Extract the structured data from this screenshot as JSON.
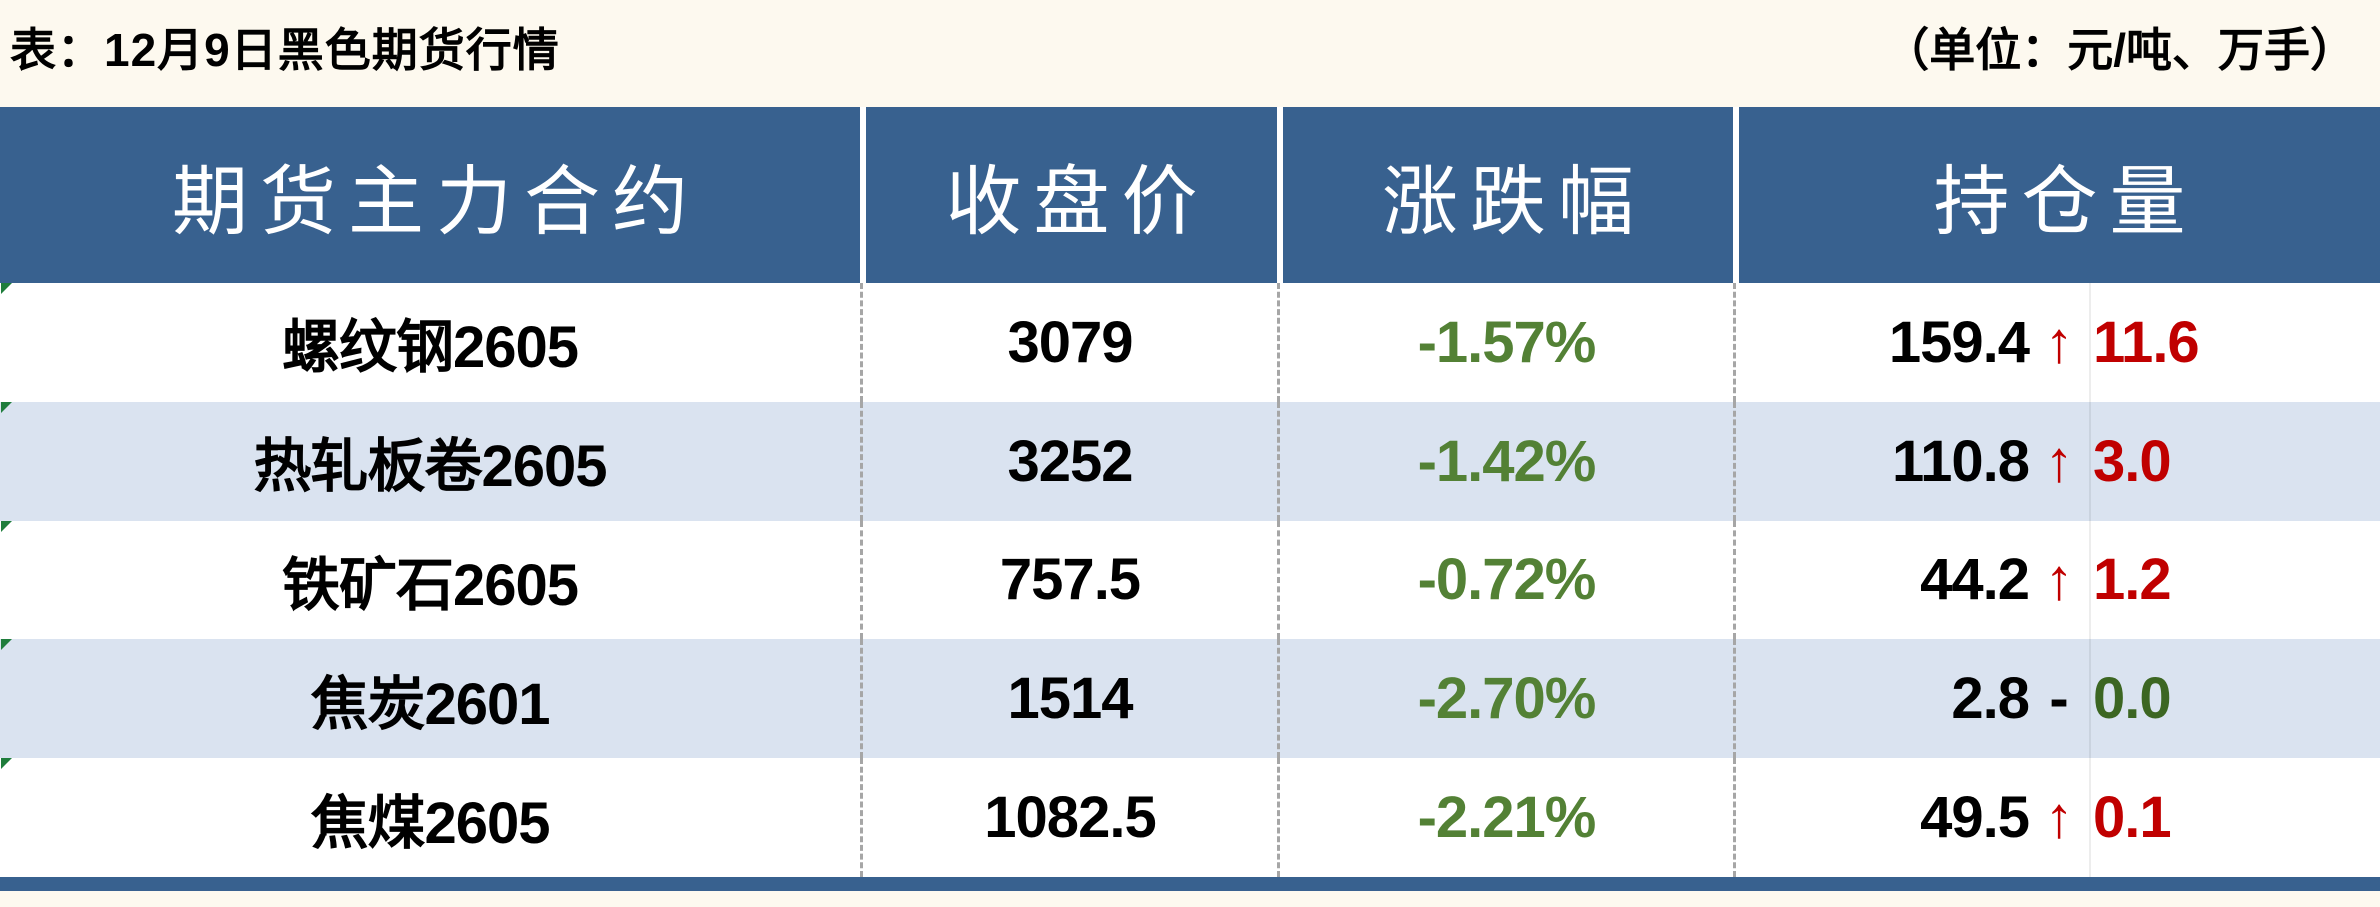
{
  "title": {
    "text": "表：12月9日黑色期货行情",
    "unit": "（单位：元/吨、万手）"
  },
  "table": {
    "headers": [
      "期货主力合约",
      "收盘价",
      "涨跌幅",
      "持仓量"
    ],
    "rows": [
      {
        "contract": "螺纹钢2605",
        "close": "3079",
        "change": "-1.57%",
        "oi": "159.4",
        "dir": "↑",
        "dir_color": "#c00000",
        "delta": "11.6",
        "delta_color": "#c00000"
      },
      {
        "contract": "热轧板卷2605",
        "close": "3252",
        "change": "-1.42%",
        "oi": "110.8",
        "dir": "↑",
        "dir_color": "#c00000",
        "delta": "3.0",
        "delta_color": "#c00000"
      },
      {
        "contract": "铁矿石2605",
        "close": "757.5",
        "change": "-0.72%",
        "oi": "44.2",
        "dir": "↑",
        "dir_color": "#c00000",
        "delta": "1.2",
        "delta_color": "#c00000"
      },
      {
        "contract": "焦炭2601",
        "close": "1514",
        "change": "-2.70%",
        "oi": "2.8",
        "dir": "-",
        "dir_color": "#000000",
        "delta": "0.0",
        "delta_color": "#3c6622"
      },
      {
        "contract": "焦煤2605",
        "close": "1082.5",
        "change": "-2.21%",
        "oi": "49.5",
        "dir": "↑",
        "dir_color": "#c00000",
        "delta": "0.1",
        "delta_color": "#c00000"
      }
    ]
  },
  "colors": {
    "header_bg": "#38618f",
    "accent_bar": "#38618f",
    "row_alt_bg": "#dae3f0",
    "page_bg": "#fdf9ef",
    "change_green": "#538135",
    "up_red": "#c00000",
    "neutral_green": "#3c6622",
    "flag_green": "#1f7d3c"
  },
  "chart_data": {
    "type": "table",
    "title": "表：12月9日黑色期货行情",
    "unit": "（单位：元/吨、万手）",
    "columns": [
      "期货主力合约",
      "收盘价",
      "涨跌幅",
      "持仓量"
    ],
    "rows": [
      [
        "螺纹钢2605",
        3079,
        "-1.57%",
        "159.4 ↑11.6"
      ],
      [
        "热轧板卷2605",
        3252,
        "-1.42%",
        "110.8 ↑3.0"
      ],
      [
        "铁矿石2605",
        757.5,
        "-0.72%",
        "44.2 ↑1.2"
      ],
      [
        "焦炭2601",
        1514,
        "-2.70%",
        "2.8 - 0.0"
      ],
      [
        "焦煤2605",
        1082.5,
        "-2.21%",
        "49.5 ↑0.1"
      ]
    ],
    "notes": "持仓量 column shows open interest (万手) with daily change; red ↑ = increase, dash with green 0.0 = unchanged; 涨跌幅 values all negative (green)."
  }
}
